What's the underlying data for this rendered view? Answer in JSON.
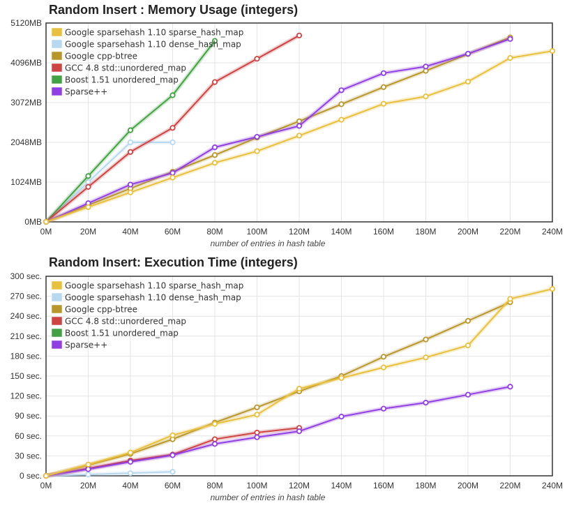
{
  "chart_data": [
    {
      "type": "line",
      "title": "Random Insert : Memory Usage (integers)",
      "xlabel": "number of entries in hash table",
      "ylabel": "",
      "x_ticks": [
        "0M",
        "20M",
        "40M",
        "60M",
        "80M",
        "100M",
        "120M",
        "140M",
        "160M",
        "180M",
        "200M",
        "220M",
        "240M"
      ],
      "y_ticks": [
        "0MB",
        "1024MB",
        "2048MB",
        "3072MB",
        "4096MB",
        "5120MB"
      ],
      "xlim": [
        0,
        240
      ],
      "ylim": [
        0,
        5120
      ],
      "legend": "top-left",
      "series": [
        {
          "name": "Google sparsehash 1.10 sparse_hash_map",
          "color": "#e8c040",
          "x": [
            0,
            20,
            40,
            60,
            80,
            100,
            120,
            140,
            160,
            180,
            200,
            220,
            240
          ],
          "y": [
            0,
            380,
            760,
            1140,
            1520,
            1820,
            2220,
            2630,
            3040,
            3230,
            3610,
            4220,
            4400
          ]
        },
        {
          "name": "Google sparsehash 1.10 dense_hash_map",
          "color": "#b8d8f0",
          "x": [
            0,
            20,
            40,
            60
          ],
          "y": [
            0,
            1024,
            2048,
            2048
          ]
        },
        {
          "name": "Google cpp-btree",
          "color": "#b8962e",
          "x": [
            0,
            20,
            40,
            60,
            80,
            100,
            120,
            140,
            160,
            180,
            200,
            220
          ],
          "y": [
            0,
            430,
            860,
            1290,
            1720,
            2170,
            2590,
            3030,
            3470,
            3890,
            4320,
            4750
          ]
        },
        {
          "name": "GCC 4.8 std::unordered_map",
          "color": "#cc4444",
          "x": [
            0,
            20,
            40,
            60,
            80,
            100,
            120
          ],
          "y": [
            0,
            900,
            1800,
            2420,
            3600,
            4200,
            4800
          ]
        },
        {
          "name": "Boost 1.51 unordered_map",
          "color": "#44a044",
          "x": [
            0,
            20,
            40,
            60,
            80
          ],
          "y": [
            0,
            1180,
            2360,
            3260,
            4660
          ]
        },
        {
          "name": "Sparse++",
          "color": "#9040e0",
          "x": [
            0,
            20,
            40,
            60,
            80,
            100,
            120,
            140,
            160,
            180,
            200,
            220
          ],
          "y": [
            0,
            480,
            960,
            1260,
            1920,
            2190,
            2470,
            3390,
            3830,
            4000,
            4330,
            4710
          ]
        }
      ]
    },
    {
      "type": "line",
      "title": "Random Insert: Execution Time (integers)",
      "xlabel": "number of entries in hash table",
      "ylabel": "",
      "x_ticks": [
        "0M",
        "20M",
        "40M",
        "60M",
        "80M",
        "100M",
        "120M",
        "140M",
        "160M",
        "180M",
        "200M",
        "220M",
        "240M"
      ],
      "y_ticks": [
        "0 sec.",
        "30 sec.",
        "60 sec.",
        "90 sec.",
        "120 sec.",
        "150 sec.",
        "180 sec.",
        "210 sec.",
        "240 sec.",
        "270 sec.",
        "300 sec."
      ],
      "xlim": [
        0,
        240
      ],
      "ylim": [
        0,
        300
      ],
      "legend": "top-left",
      "series": [
        {
          "name": "Google sparsehash 1.10 sparse_hash_map",
          "color": "#e8c040",
          "x": [
            0,
            20,
            40,
            60,
            80,
            100,
            120,
            140,
            160,
            180,
            200,
            220,
            240
          ],
          "y": [
            0,
            17,
            35,
            61,
            78,
            92,
            131,
            147,
            163,
            178,
            196,
            266,
            281
          ]
        },
        {
          "name": "Google sparsehash 1.10 dense_hash_map",
          "color": "#b8d8f0",
          "x": [
            0,
            20,
            40,
            60
          ],
          "y": [
            0,
            2,
            4,
            6
          ]
        },
        {
          "name": "Google cpp-btree",
          "color": "#b8962e",
          "x": [
            0,
            20,
            40,
            60,
            80,
            100,
            120,
            140,
            160,
            180,
            200,
            220
          ],
          "y": [
            0,
            16,
            33,
            55,
            80,
            103,
            127,
            150,
            179,
            205,
            233,
            261
          ]
        },
        {
          "name": "GCC 4.8 std::unordered_map",
          "color": "#cc4444",
          "x": [
            0,
            20,
            40,
            60,
            80,
            100,
            120
          ],
          "y": [
            0,
            11,
            23,
            32,
            55,
            65,
            72
          ]
        },
        {
          "name": "Boost 1.51 unordered_map",
          "color": "#44a044",
          "x": [],
          "y": []
        },
        {
          "name": "Sparse++",
          "color": "#9040e0",
          "x": [
            0,
            20,
            40,
            60,
            80,
            100,
            120,
            140,
            160,
            180,
            200,
            220
          ],
          "y": [
            0,
            10,
            21,
            31,
            48,
            58,
            67,
            89,
            101,
            110,
            122,
            134
          ]
        }
      ]
    }
  ]
}
